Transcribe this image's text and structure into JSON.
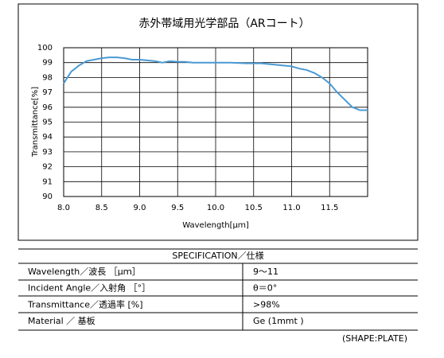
{
  "chart_data": {
    "type": "line",
    "title": "赤外帯域用光学部品（ARコート）",
    "x_label": "Wavelength[μｍ]",
    "y_label": "Transmittance[%]",
    "x": [
      8.0,
      8.1,
      8.2,
      8.3,
      8.4,
      8.5,
      8.6,
      8.7,
      8.8,
      8.9,
      9.0,
      9.1,
      9.2,
      9.3,
      9.4,
      9.5,
      9.6,
      9.7,
      9.8,
      9.9,
      10.0,
      10.2,
      10.4,
      10.6,
      10.8,
      11.0,
      11.1,
      11.2,
      11.3,
      11.4,
      11.5,
      11.6,
      11.7,
      11.8,
      11.9,
      12.0
    ],
    "series": [
      {
        "color": "#4a9ad4",
        "values": [
          97.6,
          98.4,
          98.8,
          99.1,
          99.2,
          99.3,
          99.35,
          99.35,
          99.3,
          99.2,
          99.2,
          99.15,
          99.1,
          99.0,
          99.1,
          99.05,
          99.05,
          99.0,
          99.0,
          99.0,
          99.0,
          99.0,
          98.95,
          98.95,
          98.85,
          98.75,
          98.6,
          98.5,
          98.3,
          98.0,
          97.6,
          97.0,
          96.5,
          96.0,
          95.8,
          95.8
        ]
      }
    ],
    "xlim": [
      8.0,
      12.0
    ],
    "xticks": [
      {
        "value": 8,
        "label": "8.0"
      },
      8.5,
      {
        "value": 9,
        "label": "9.0"
      },
      9.5,
      {
        "value": 10,
        "label": "10.0"
      },
      10.5,
      {
        "value": 11,
        "label": "11.0"
      },
      11.5
    ],
    "ylim": [
      90,
      100
    ],
    "yticks": [
      90,
      91,
      92,
      93,
      94,
      95,
      96,
      97,
      98,
      99,
      100
    ],
    "grid": true
  },
  "table": {
    "title": "SPECIFICATION／仕様",
    "rows": [
      [
        "Wavelength／波長 ［μｍ］",
        "9～11"
      ],
      [
        "Incident Angle／入射角 ［°］",
        "θ＝0°"
      ],
      [
        "Transmittance／透過率 [%]",
        ">98%"
      ],
      [
        "Material ／ 基板",
        "Ge (1mmt )"
      ]
    ],
    "note": "(SHAPE:PLATE)"
  }
}
